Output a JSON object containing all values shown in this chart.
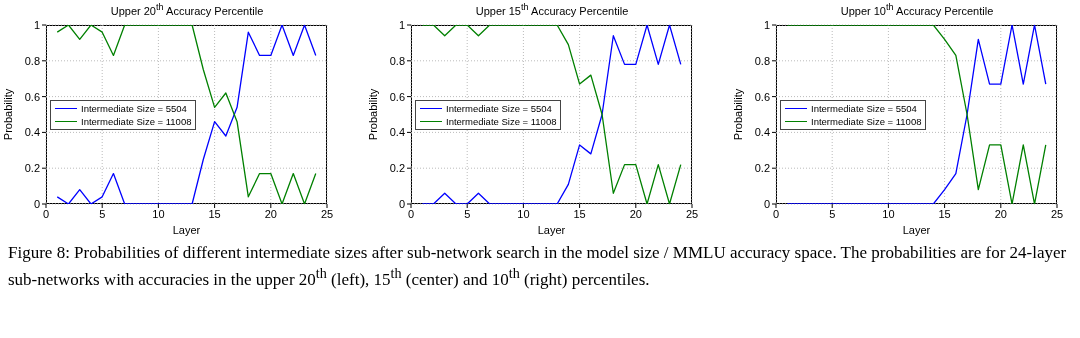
{
  "chart_data": [
    {
      "type": "line",
      "title": "Upper 20$^{th}$ Accuracy Percentile",
      "xlabel": "Layer",
      "ylabel": "Probability",
      "x": [
        1,
        2,
        3,
        4,
        5,
        6,
        7,
        8,
        9,
        10,
        11,
        12,
        13,
        14,
        15,
        16,
        17,
        18,
        19,
        20,
        21,
        22,
        23,
        24
      ],
      "series": [
        {
          "name": "Intermediate Size = 5504",
          "color": "#0000ff",
          "values": [
            0.04,
            0,
            0.08,
            0,
            0.04,
            0.17,
            0,
            0,
            0,
            0,
            0,
            0,
            0,
            0.25,
            0.46,
            0.38,
            0.54,
            0.96,
            0.83,
            0.83,
            1,
            0.83,
            1,
            0.83
          ]
        },
        {
          "name": "Intermediate Size = 11008",
          "color": "#008000",
          "values": [
            0.96,
            1,
            0.92,
            1,
            0.96,
            0.83,
            1,
            1,
            1,
            1,
            1,
            1,
            1,
            0.75,
            0.54,
            0.62,
            0.46,
            0.04,
            0.17,
            0.17,
            0,
            0.17,
            0,
            0.17
          ]
        }
      ],
      "xlim": [
        0,
        25
      ],
      "xticks": [
        0,
        5,
        10,
        15,
        20,
        25
      ],
      "ylim": [
        0,
        1
      ],
      "yticks": [
        0,
        0.2,
        0.4,
        0.6,
        0.8,
        1
      ],
      "grid": true,
      "legend": "left",
      "marker": "none",
      "line_style": "solid",
      "annotations": [
        "Figure 8: Probabilities of different intermediate sizes after sub-network search in the model size / MMLU accuracy space. The probabilities are for 24-layer sub-networks with accuracies in the upper 20$^{th}$ (left), 15$^{th}$ (center) and 10$^{th}$ (right) percentiles."
      ]
    },
    {
      "type": "line",
      "title": "Upper 15$^{th}$ Accuracy Percentile",
      "xlabel": "Layer",
      "ylabel": "Probability",
      "x": [
        1,
        2,
        3,
        4,
        5,
        6,
        7,
        8,
        9,
        10,
        11,
        12,
        13,
        14,
        15,
        16,
        17,
        18,
        19,
        20,
        21,
        22,
        23,
        24
      ],
      "series": [
        {
          "name": "Intermediate Size = 5504",
          "color": "#0000ff",
          "values": [
            0,
            0,
            0.06,
            0,
            0,
            0.06,
            0,
            0,
            0,
            0,
            0,
            0,
            0,
            0.11,
            0.33,
            0.28,
            0.5,
            0.94,
            0.78,
            0.78,
            1,
            0.78,
            1,
            0.78
          ]
        },
        {
          "name": "Intermediate Size = 11008",
          "color": "#008000",
          "values": [
            1,
            1,
            0.94,
            1,
            1,
            0.94,
            1,
            1,
            1,
            1,
            1,
            1,
            1,
            0.89,
            0.67,
            0.72,
            0.5,
            0.06,
            0.22,
            0.22,
            0,
            0.22,
            0,
            0.22
          ]
        }
      ],
      "xlim": [
        0,
        25
      ],
      "xticks": [
        0,
        5,
        10,
        15,
        20,
        25
      ],
      "ylim": [
        0,
        1
      ],
      "yticks": [
        0,
        0.2,
        0.4,
        0.6,
        0.8,
        1
      ],
      "grid": true,
      "legend": "left",
      "marker": "none",
      "line_style": "solid"
    },
    {
      "type": "line",
      "title": "Upper 10$^{th}$ Accuracy Percentile",
      "xlabel": "Layer",
      "ylabel": "Probability",
      "x": [
        1,
        2,
        3,
        4,
        5,
        6,
        7,
        8,
        9,
        10,
        11,
        12,
        13,
        14,
        15,
        16,
        17,
        18,
        19,
        20,
        21,
        22,
        23,
        24
      ],
      "series": [
        {
          "name": "Intermediate Size = 5504",
          "color": "#0000ff",
          "values": [
            0,
            0,
            0,
            0,
            0,
            0,
            0,
            0,
            0,
            0,
            0,
            0,
            0,
            0,
            0.08,
            0.17,
            0.5,
            0.92,
            0.67,
            0.67,
            1,
            0.67,
            1,
            0.67
          ]
        },
        {
          "name": "Intermediate Size = 11008",
          "color": "#008000",
          "values": [
            1,
            1,
            1,
            1,
            1,
            1,
            1,
            1,
            1,
            1,
            1,
            1,
            1,
            1,
            0.92,
            0.83,
            0.5,
            0.08,
            0.33,
            0.33,
            0,
            0.33,
            0,
            0.33
          ]
        }
      ],
      "xlim": [
        0,
        25
      ],
      "xticks": [
        0,
        5,
        10,
        15,
        20,
        25
      ],
      "ylim": [
        0,
        1
      ],
      "yticks": [
        0,
        0.2,
        0.4,
        0.6,
        0.8,
        1
      ],
      "grid": true,
      "legend": "left",
      "marker": "none",
      "line_style": "solid"
    }
  ]
}
